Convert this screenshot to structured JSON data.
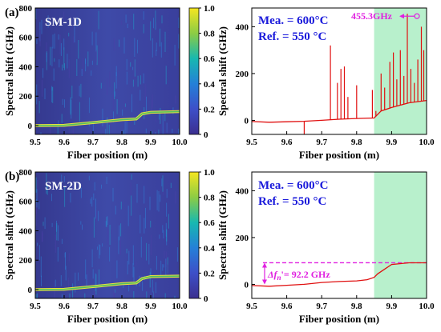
{
  "colors": {
    "accent": "#e020e0",
    "series": "#e01010",
    "shade": "#b8f0cc",
    "note": "#1a1adb",
    "heat_low": "#3b2f8f",
    "heat_high": "#f5e620"
  },
  "panels": {
    "a": {
      "letter": "(a)",
      "heatmap_label": "SM-1D",
      "measured": "Mea. = 600°C",
      "reference": "Ref. = 550 °C",
      "peak_label": "455.3GHz"
    },
    "b": {
      "letter": "(b)",
      "heatmap_label": "SM-2D",
      "measured": "Mea. = 600°C",
      "reference": "Ref. = 550 °C",
      "offset_label": "Δf",
      "offset_sub": "n",
      "offset_value": "'= 92.2 GHz"
    }
  },
  "chart_data": [
    {
      "type": "heatmap",
      "panel": "a-left",
      "title": "SM-1D",
      "xlabel": "Fiber position (m)",
      "ylabel": "Spectral shift (GHz)",
      "xlim": [
        9.5,
        10.0
      ],
      "ylim": [
        -60,
        800
      ],
      "x_ticks": [
        "9.5",
        "9.6",
        "9.7",
        "9.8",
        "9.9",
        "10.0"
      ],
      "y_ticks": [
        "0",
        "200",
        "400",
        "600",
        "800"
      ],
      "colorbar": {
        "ticks": [
          "0",
          "0.2",
          "0.4",
          "0.6",
          "0.8",
          "1.0"
        ],
        "range": [
          0,
          1
        ]
      },
      "ridge": {
        "x": [
          9.5,
          9.6,
          9.7,
          9.8,
          9.85,
          9.87,
          9.9,
          10.0
        ],
        "y": [
          0,
          2,
          20,
          40,
          45,
          80,
          90,
          95
        ]
      }
    },
    {
      "type": "line",
      "panel": "a-right",
      "xlabel": "Fiber position (m)",
      "ylabel": "Spectral shift (GHz)",
      "xlim": [
        9.5,
        10.0
      ],
      "ylim": [
        -60,
        480
      ],
      "x_ticks": [
        "9.5",
        "9.6",
        "9.7",
        "9.8",
        "9.9",
        "10.0"
      ],
      "y_ticks": [
        "0",
        "200",
        "400"
      ],
      "shaded_region": [
        9.85,
        10.0
      ],
      "baseline": {
        "x": [
          9.5,
          9.55,
          9.6,
          9.65,
          9.7,
          9.75,
          9.8,
          9.85,
          9.87,
          9.9,
          9.95,
          10.0
        ],
        "y": [
          -5,
          -8,
          -6,
          -4,
          0,
          5,
          8,
          10,
          40,
          55,
          75,
          85
        ]
      },
      "spikes": [
        {
          "x": 9.65,
          "y": -60
        },
        {
          "x": 9.725,
          "y": 320
        },
        {
          "x": 9.745,
          "y": 160
        },
        {
          "x": 9.755,
          "y": 220
        },
        {
          "x": 9.765,
          "y": 230
        },
        {
          "x": 9.775,
          "y": 100
        },
        {
          "x": 9.8,
          "y": 150
        },
        {
          "x": 9.845,
          "y": 130
        },
        {
          "x": 9.855,
          "y": 40
        },
        {
          "x": 9.87,
          "y": 200
        },
        {
          "x": 9.88,
          "y": 140
        },
        {
          "x": 9.895,
          "y": 250
        },
        {
          "x": 9.905,
          "y": 290
        },
        {
          "x": 9.915,
          "y": 175
        },
        {
          "x": 9.925,
          "y": 300
        },
        {
          "x": 9.935,
          "y": 190
        },
        {
          "x": 9.945,
          "y": 455.3
        },
        {
          "x": 9.955,
          "y": 220
        },
        {
          "x": 9.965,
          "y": 160
        },
        {
          "x": 9.975,
          "y": 260
        },
        {
          "x": 9.985,
          "y": 400
        },
        {
          "x": 9.992,
          "y": 300
        }
      ],
      "peak": {
        "x": 9.945,
        "y": 455.3
      }
    },
    {
      "type": "heatmap",
      "panel": "b-left",
      "title": "SM-2D",
      "xlabel": "Fiber position (m)",
      "ylabel": "Spectral shift (GHz)",
      "xlim": [
        9.5,
        10.0
      ],
      "ylim": [
        -60,
        800
      ],
      "x_ticks": [
        "9.5",
        "9.6",
        "9.7",
        "9.8",
        "9.9",
        "10.0"
      ],
      "y_ticks": [
        "0",
        "200",
        "400",
        "600",
        "800"
      ],
      "colorbar": {
        "ticks": [
          "0",
          "0.2",
          "0.4",
          "0.6",
          "0.8",
          "1.0"
        ],
        "range": [
          0,
          1
        ]
      },
      "ridge": {
        "x": [
          9.5,
          9.6,
          9.7,
          9.8,
          9.85,
          9.87,
          9.9,
          10.0
        ],
        "y": [
          0,
          2,
          20,
          40,
          45,
          75,
          88,
          92
        ]
      }
    },
    {
      "type": "line",
      "panel": "b-right",
      "xlabel": "Fiber position (m)",
      "ylabel": "Spectral shift (GHz)",
      "xlim": [
        9.5,
        10.0
      ],
      "ylim": [
        -60,
        480
      ],
      "x_ticks": [
        "9.5",
        "9.6",
        "9.7",
        "9.8",
        "9.9",
        "10.0"
      ],
      "y_ticks": [
        "0",
        "200",
        "400"
      ],
      "shaded_region": [
        9.85,
        10.0
      ],
      "series": {
        "x": [
          9.5,
          9.55,
          9.6,
          9.65,
          9.7,
          9.75,
          9.8,
          9.83,
          9.85,
          9.86,
          9.88,
          9.9,
          9.95,
          10.0
        ],
        "y": [
          -5,
          -8,
          -4,
          0,
          8,
          12,
          15,
          20,
          30,
          45,
          65,
          85,
          92,
          92
        ]
      },
      "reference_line": {
        "y": 92.2
      }
    }
  ]
}
